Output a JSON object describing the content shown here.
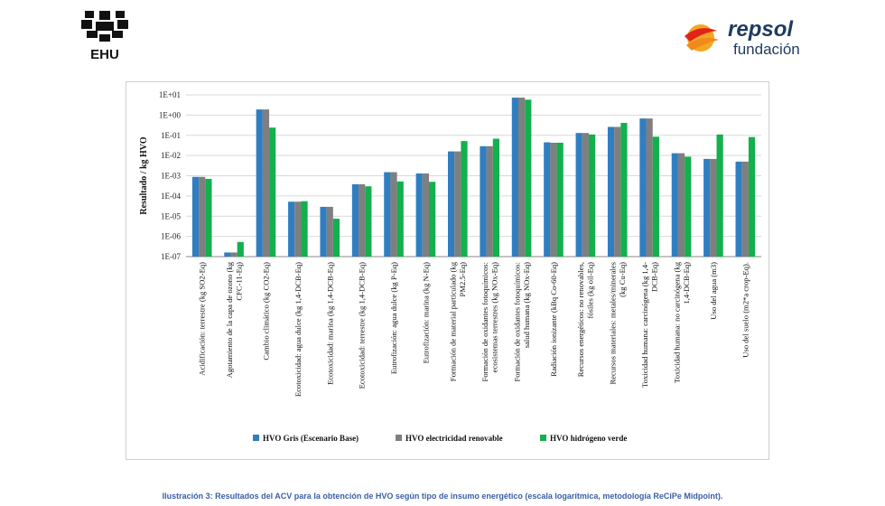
{
  "logos": {
    "ehu_text": "EHU",
    "repsol_name": "repsol",
    "repsol_sub": "fundación"
  },
  "caption": "Ilustración 3: Resultados del ACV para la obtención de HVO según tipo de insumo energético (escala logarítmica, metodología ReCiPe Midpoint).",
  "colors": {
    "series": [
      "#2f7ec2",
      "#7f7f7f",
      "#13b04d"
    ],
    "grid": "#d9d9d9",
    "brand_orange": "#f08a1c"
  },
  "chart_data": {
    "type": "bar",
    "scale": "log",
    "ylabel": "Resultado / kg HVO",
    "xlabel": "",
    "title": "",
    "ylim": [
      1e-07,
      10
    ],
    "yticks": [
      "1E-07",
      "1E-06",
      "1E-05",
      "1E-04",
      "1E-03",
      "1E-02",
      "1E-01",
      "1E+00",
      "1E+01"
    ],
    "grid": true,
    "legend_position": "bottom",
    "categories": [
      [
        "Acidificación: terrestre (kg SO2-Eq)"
      ],
      [
        "Agotamiento de la capa de ozono (kg",
        "CFC-11-Eq)"
      ],
      [
        "Cambio climático (kg CO2-Eq)"
      ],
      [
        "Ecotoxicidad: agua dulce (kg 1,4-DCB-Eq)"
      ],
      [
        "Ecotoxicidad: marina (kg 1,4-DCB-Eq)"
      ],
      [
        "Ecotoxicidad: terrestre (kg 1,4-DCB-Eq)"
      ],
      [
        "Eutrofización: agua dulce (kg P-Eq)"
      ],
      [
        "Eutrofización: marina (kg N-Eq)"
      ],
      [
        "Formación de material particulado (kg",
        "PM2.5-Eq)"
      ],
      [
        "Formación de oxidantes fotoquímicos:",
        "ecosistemas terrestres (kg NOx-Eq)"
      ],
      [
        "Formación de oxidantes fotoquímicos:",
        "salud humana (kg NOx-Eq)"
      ],
      [
        "Radiación ionizante (kBq Co-60-Eq)"
      ],
      [
        "Recursos energéticos: no renovables,",
        "fósiles (kg oil-Eq)"
      ],
      [
        "Recursos materiales: metales/minerales",
        "(kg Cu-Eq)"
      ],
      [
        "Toxicidad humana: carcinógena (kg 1,4-",
        "DCB-Eq)"
      ],
      [
        "Toxicidad humana: no carcinógena (kg",
        "1,4-DCB-Eq)"
      ],
      [
        "Uso del agua (m3)"
      ],
      [
        "Uso del suelo (m2*a crop-Eq)."
      ]
    ],
    "series": [
      {
        "name": "HVO Gris (Escenario Base)",
        "values": [
          0.00088,
          1.6e-07,
          1.9,
          5.2e-05,
          2.9e-05,
          0.00038,
          0.0015,
          0.0013,
          0.016,
          0.029,
          7.3,
          0.045,
          0.13,
          0.26,
          0.68,
          0.013,
          0.0068,
          0.005
        ]
      },
      {
        "name": "HVO electricidad renovable",
        "values": [
          0.00088,
          1.6e-07,
          1.9,
          5.2e-05,
          2.9e-05,
          0.00038,
          0.0015,
          0.0013,
          0.016,
          0.029,
          7.3,
          0.043,
          0.13,
          0.26,
          0.68,
          0.013,
          0.0068,
          0.005
        ]
      },
      {
        "name": "HVO hidrógeno verde",
        "values": [
          0.0007,
          5.3e-07,
          0.24,
          5.5e-05,
          7.5e-06,
          0.0003,
          0.00052,
          0.0005,
          0.052,
          0.068,
          5.8,
          0.043,
          0.11,
          0.41,
          0.085,
          0.0088,
          0.11,
          0.082
        ]
      }
    ]
  }
}
